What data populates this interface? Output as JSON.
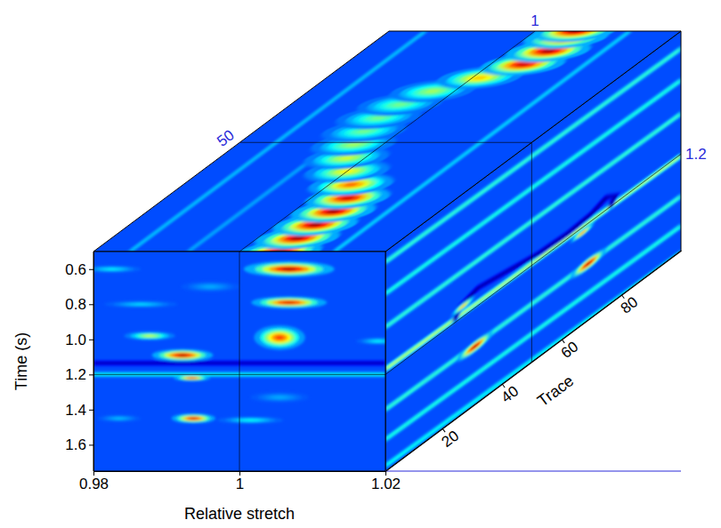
{
  "chart_data": {
    "type": "cube",
    "xlabel": "Relative stretch",
    "ylabel": "Time (s)",
    "zlabel": "Trace",
    "xlim": [
      0.98,
      1.02
    ],
    "xticks": [
      0.98,
      1,
      1.02
    ],
    "ylim": [
      0.5,
      1.75
    ],
    "yticks": [
      0.6,
      0.8,
      {
        "value": 1,
        "label": "1.0"
      },
      1.2,
      1.4,
      1.6
    ],
    "zlim": [
      1,
      100
    ],
    "zticks": [
      20,
      40,
      60,
      80
    ],
    "slices": {
      "x": 1,
      "y": 1.2,
      "z": 50
    },
    "color_range": [
      0,
      1
    ],
    "faces": {
      "front": {
        "background": 0.2,
        "lines": [
          {
            "points": [
              [
                0.98,
                1.135
              ],
              [
                1.02,
                1.135
              ]
            ],
            "value": 0.05
          },
          {
            "points": [
              [
                0.98,
                1.2
              ],
              [
                1.02,
                1.2
              ]
            ],
            "value": 0.38
          }
        ],
        "peaks": [
          {
            "x": 1.0068,
            "y": 0.6,
            "rx": 0.0062,
            "ry": 0.045,
            "value": 1.0
          },
          {
            "x": 1.0068,
            "y": 0.79,
            "rx": 0.0052,
            "ry": 0.035,
            "value": 0.95
          },
          {
            "x": 1.0055,
            "y": 0.99,
            "rx": 0.0035,
            "ry": 0.07,
            "value": 0.85
          },
          {
            "x": 0.9922,
            "y": 1.09,
            "rx": 0.0042,
            "ry": 0.035,
            "value": 1.0
          },
          {
            "x": 0.9935,
            "y": 1.22,
            "rx": 0.0025,
            "ry": 0.018,
            "value": 0.9
          },
          {
            "x": 0.9937,
            "y": 1.45,
            "rx": 0.003,
            "ry": 0.028,
            "value": 0.95
          },
          {
            "x": 0.9877,
            "y": 0.98,
            "rx": 0.0035,
            "ry": 0.025,
            "value": 0.6
          },
          {
            "x": 0.9825,
            "y": 0.6,
            "rx": 0.004,
            "ry": 0.02,
            "value": 0.38
          },
          {
            "x": 0.9865,
            "y": 0.8,
            "rx": 0.005,
            "ry": 0.02,
            "value": 0.35
          },
          {
            "x": 1.0015,
            "y": 1.46,
            "rx": 0.0045,
            "ry": 0.02,
            "value": 0.4
          },
          {
            "x": 1.019,
            "y": 1.01,
            "rx": 0.003,
            "ry": 0.02,
            "value": 0.38
          },
          {
            "x": 0.996,
            "y": 0.7,
            "rx": 0.004,
            "ry": 0.03,
            "value": 0.3
          },
          {
            "x": 1.0055,
            "y": 1.33,
            "rx": 0.004,
            "ry": 0.03,
            "value": 0.3
          },
          {
            "x": 0.9835,
            "y": 1.45,
            "rx": 0.003,
            "ry": 0.02,
            "value": 0.32
          }
        ]
      },
      "top": {
        "background": 0.2,
        "lines": [
          {
            "points": [
              [
                0.985,
                1
              ],
              [
                0.985,
                100
              ]
            ],
            "value": 0.3
          },
          {
            "points": [
              [
                1.013,
                1
              ],
              [
                1.013,
                100
              ]
            ],
            "value": 0.32
          },
          {
            "points": [
              [
                0.993,
                1
              ],
              [
                0.993,
                40
              ]
            ],
            "value": 0.28
          }
        ],
        "peaks": [
          {
            "x": 1.0055,
            "z": 1,
            "rx": 0.0055,
            "rz": 5,
            "value": 1.0
          },
          {
            "x": 1.0055,
            "z": 7,
            "rx": 0.0055,
            "rz": 5,
            "value": 1.0
          },
          {
            "x": 1.0055,
            "z": 13,
            "rx": 0.0055,
            "rz": 5,
            "value": 1.0
          },
          {
            "x": 1.0055,
            "z": 19,
            "rx": 0.0055,
            "rz": 5,
            "value": 1.0
          },
          {
            "x": 1.005,
            "z": 25,
            "rx": 0.0055,
            "rz": 5,
            "value": 0.95
          },
          {
            "x": 1.003,
            "z": 31,
            "rx": 0.0055,
            "rz": 5,
            "value": 0.8
          },
          {
            "x": 1.0,
            "z": 37,
            "rx": 0.0055,
            "rz": 5,
            "value": 0.65
          },
          {
            "x": 0.9975,
            "z": 43,
            "rx": 0.0055,
            "rz": 5,
            "value": 0.6
          },
          {
            "x": 0.996,
            "z": 49,
            "rx": 0.0055,
            "rz": 5,
            "value": 0.55
          },
          {
            "x": 0.995,
            "z": 55,
            "rx": 0.0055,
            "rz": 5,
            "value": 0.5
          },
          {
            "x": 0.9945,
            "z": 61,
            "rx": 0.0055,
            "rz": 5,
            "value": 0.5
          },
          {
            "x": 0.995,
            "z": 67,
            "rx": 0.0055,
            "rz": 5,
            "value": 0.5
          },
          {
            "x": 0.997,
            "z": 73,
            "rx": 0.0055,
            "rz": 5,
            "value": 0.55
          },
          {
            "x": 1.001,
            "z": 79,
            "rx": 0.0055,
            "rz": 5,
            "value": 0.7
          },
          {
            "x": 1.0045,
            "z": 85,
            "rx": 0.0055,
            "rz": 5,
            "value": 0.95
          },
          {
            "x": 1.0055,
            "z": 91,
            "rx": 0.0055,
            "rz": 5,
            "value": 1.0
          },
          {
            "x": 1.0055,
            "z": 97,
            "rx": 0.0055,
            "rz": 5,
            "value": 1.0
          },
          {
            "x": 1.0055,
            "z": 100,
            "rx": 0.0055,
            "rz": 5,
            "value": 1.0
          }
        ]
      },
      "side": {
        "background": 0.2,
        "lines": [
          {
            "points": [
              [
                1,
                0.56
              ],
              [
                100,
                0.6
              ]
            ],
            "value": 0.42
          },
          {
            "points": [
              [
                1,
                0.74
              ],
              [
                100,
                0.78
              ]
            ],
            "value": 0.4
          },
          {
            "points": [
              [
                1,
                0.93
              ],
              [
                100,
                0.97
              ]
            ],
            "value": 0.42
          },
          {
            "points": [
              [
                1,
                1.17
              ],
              [
                100,
                1.21
              ]
            ],
            "value": 0.55
          },
          {
            "points": [
              [
                1,
                1.4
              ],
              [
                100,
                1.44
              ]
            ],
            "value": 0.42
          },
          {
            "points": [
              [
                1,
                1.57
              ],
              [
                100,
                1.61
              ]
            ],
            "value": 0.4
          },
          {
            "points": [
              [
                1,
                1.72
              ],
              [
                100,
                1.76
              ]
            ],
            "value": 0.38
          },
          {
            "points": [
              [
                24,
                1.19
              ],
              [
                26,
                1.13
              ],
              [
                32,
                1.1
              ],
              [
                42,
                1.13
              ],
              [
                52,
                1.16
              ],
              [
                62,
                1.17
              ],
              [
                70,
                1.16
              ],
              [
                75,
                1.13
              ],
              [
                78,
                1.16
              ],
              [
                76,
                1.2
              ]
            ],
            "value": 0.03
          }
        ],
        "peaks": [
          {
            "z": 31,
            "y": 1.42,
            "rz": 6,
            "ry": 0.035,
            "value": 1.0
          },
          {
            "z": 69,
            "y": 1.43,
            "rz": 6,
            "ry": 0.035,
            "value": 1.0
          },
          {
            "z": 27,
            "y": 1.14,
            "rz": 4,
            "ry": 0.02,
            "value": 0.75
          },
          {
            "z": 67,
            "y": 1.23,
            "rz": 4,
            "ry": 0.02,
            "value": 0.8
          }
        ]
      }
    }
  }
}
